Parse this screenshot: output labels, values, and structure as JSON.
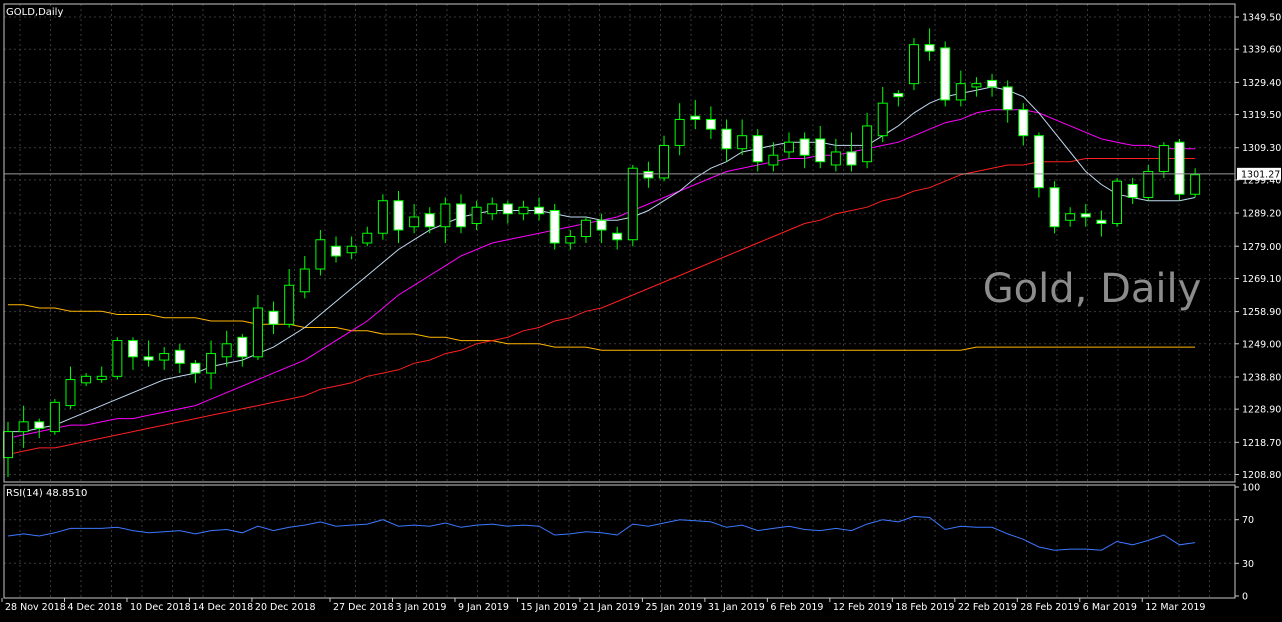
{
  "window": {
    "symbol_label": "GOLD,Daily",
    "watermark": "Gold, Daily",
    "current_price_label": "1301.27"
  },
  "colors": {
    "background": "#000000",
    "grid": "#3a3a3a",
    "frame": "#c8c8c8",
    "text": "#ffffff",
    "bull_body": "#000000",
    "bull_border": "#00ff00",
    "bear_body": "#ffffff",
    "bear_border": "#00ff00",
    "ma_fast": "#c0d8f0",
    "ma_mid": "#ff00ff",
    "ma_slow": "#ff2020",
    "ma_long": "#ffb400",
    "rsi_line": "#3c78ff",
    "watermark": "#8c8c8c"
  },
  "chart_data": [
    {
      "type": "candlestick",
      "title": "GOLD,Daily",
      "y_ticks": [
        "1349.50",
        "1339.60",
        "1329.40",
        "1319.50",
        "1309.30",
        "1299.40",
        "1289.20",
        "1279.00",
        "1269.10",
        "1258.90",
        "1249.00",
        "1238.80",
        "1228.90",
        "1218.70",
        "1208.80"
      ],
      "ylim": [
        1206.5,
        1353.5
      ],
      "x_labels": [
        "28 Nov 2018",
        "4 Dec 2018",
        "10 Dec 2018",
        "14 Dec 2018",
        "20 Dec 2018",
        "27 Dec 2018",
        "3 Jan 2019",
        "9 Jan 2019",
        "15 Jan 2019",
        "21 Jan 2019",
        "25 Jan 2019",
        "31 Jan 2019",
        "6 Feb 2019",
        "12 Feb 2019",
        "18 Feb 2019",
        "22 Feb 2019",
        "28 Feb 2019",
        "6 Mar 2019",
        "12 Mar 2019"
      ],
      "x_label_index": [
        0,
        4,
        8,
        12,
        16,
        21,
        25,
        29,
        33,
        37,
        41,
        45,
        49,
        53,
        57,
        61,
        65,
        69,
        73
      ],
      "current_price": 1301.27,
      "candles": [
        [
          1214,
          1222,
          1208,
          1225
        ],
        [
          1222,
          1225,
          1217,
          1230
        ],
        [
          1225,
          1223,
          1220,
          1226
        ],
        [
          1222,
          1231,
          1221,
          1232
        ],
        [
          1230,
          1238,
          1229,
          1242
        ],
        [
          1237,
          1239,
          1236,
          1240
        ],
        [
          1238,
          1239,
          1237,
          1242
        ],
        [
          1239,
          1250,
          1238,
          1251
        ],
        [
          1250,
          1245,
          1241,
          1251
        ],
        [
          1245,
          1244,
          1242,
          1250
        ],
        [
          1244,
          1246,
          1241,
          1248
        ],
        [
          1247,
          1243,
          1240,
          1249
        ],
        [
          1243,
          1240,
          1237,
          1244
        ],
        [
          1240,
          1246,
          1235,
          1250
        ],
        [
          1245,
          1249,
          1242,
          1253
        ],
        [
          1251,
          1245,
          1242,
          1252
        ],
        [
          1245,
          1260,
          1244,
          1264
        ],
        [
          1259,
          1255,
          1252,
          1262
        ],
        [
          1255,
          1267,
          1254,
          1272
        ],
        [
          1265,
          1272,
          1263,
          1276
        ],
        [
          1272,
          1281,
          1270,
          1284
        ],
        [
          1279,
          1276,
          1274,
          1282
        ],
        [
          1277,
          1279,
          1275,
          1282
        ],
        [
          1280,
          1283,
          1279,
          1285
        ],
        [
          1283,
          1293,
          1281,
          1295
        ],
        [
          1293,
          1284,
          1280,
          1296
        ],
        [
          1285,
          1288,
          1283,
          1292
        ],
        [
          1289,
          1285,
          1283,
          1291
        ],
        [
          1285,
          1292,
          1280,
          1294
        ],
        [
          1292,
          1285,
          1283,
          1295
        ],
        [
          1286,
          1291,
          1284,
          1293
        ],
        [
          1289,
          1292,
          1287,
          1294
        ],
        [
          1292,
          1289,
          1286,
          1293
        ],
        [
          1289,
          1291,
          1287,
          1293
        ],
        [
          1291,
          1289,
          1287,
          1294
        ],
        [
          1290,
          1280,
          1278,
          1292
        ],
        [
          1280,
          1282,
          1278,
          1284
        ],
        [
          1282,
          1287,
          1280,
          1288
        ],
        [
          1287,
          1284,
          1280,
          1289
        ],
        [
          1283,
          1281,
          1278,
          1285
        ],
        [
          1281,
          1303,
          1279,
          1304
        ],
        [
          1302,
          1300,
          1297,
          1305
        ],
        [
          1300,
          1310,
          1299,
          1313
        ],
        [
          1310,
          1318,
          1307,
          1323
        ],
        [
          1319,
          1318,
          1315,
          1324
        ],
        [
          1318,
          1315,
          1312,
          1322
        ],
        [
          1315,
          1309,
          1305,
          1318
        ],
        [
          1309,
          1313,
          1307,
          1318
        ],
        [
          1313,
          1305,
          1302,
          1315
        ],
        [
          1304,
          1307,
          1302,
          1311
        ],
        [
          1308,
          1311,
          1306,
          1314
        ],
        [
          1312,
          1307,
          1303,
          1314
        ],
        [
          1312,
          1305,
          1303,
          1316
        ],
        [
          1304,
          1308,
          1302,
          1312
        ],
        [
          1308,
          1304,
          1302,
          1314
        ],
        [
          1305,
          1316,
          1303,
          1320
        ],
        [
          1313,
          1323,
          1311,
          1328
        ],
        [
          1326,
          1325,
          1322,
          1327
        ],
        [
          1329,
          1341,
          1327,
          1343
        ],
        [
          1341,
          1339,
          1336,
          1346
        ],
        [
          1340,
          1324,
          1322,
          1342
        ],
        [
          1324,
          1329,
          1322,
          1333
        ],
        [
          1328,
          1329,
          1325,
          1331
        ],
        [
          1330,
          1328,
          1325,
          1332
        ],
        [
          1328,
          1321,
          1317,
          1330
        ],
        [
          1321,
          1313,
          1310,
          1323
        ],
        [
          1313,
          1297,
          1294,
          1314
        ],
        [
          1297,
          1285,
          1283,
          1299
        ],
        [
          1287,
          1289,
          1285,
          1291
        ],
        [
          1289,
          1288,
          1285,
          1292
        ],
        [
          1287,
          1286,
          1282,
          1290
        ],
        [
          1286,
          1299,
          1285,
          1300
        ],
        [
          1298,
          1294,
          1292,
          1300
        ],
        [
          1294,
          1302,
          1293,
          1304
        ],
        [
          1302,
          1310,
          1300,
          1311
        ],
        [
          1311,
          1295,
          1293,
          1312
        ],
        [
          1295,
          1301,
          1294,
          1303
        ]
      ],
      "ma_fast": [
        1222,
        1222,
        1223,
        1224,
        1226,
        1228,
        1230,
        1232,
        1234,
        1236,
        1238,
        1239,
        1240,
        1242,
        1243,
        1244,
        1246,
        1248,
        1251,
        1254,
        1258,
        1262,
        1266,
        1270,
        1274,
        1278,
        1281,
        1284,
        1286,
        1288,
        1289,
        1290,
        1290,
        1290,
        1290,
        1289,
        1288,
        1288,
        1287,
        1287,
        1288,
        1290,
        1293,
        1296,
        1300,
        1303,
        1305,
        1308,
        1309,
        1310,
        1311,
        1311,
        1311,
        1310,
        1310,
        1310,
        1313,
        1316,
        1320,
        1323,
        1325,
        1326,
        1327,
        1328,
        1327,
        1325,
        1320,
        1314,
        1308,
        1302,
        1298,
        1295,
        1294,
        1293,
        1293,
        1293,
        1294
      ],
      "ma_mid": [
        1220,
        1221,
        1222,
        1223,
        1224,
        1224,
        1225,
        1226,
        1226,
        1227,
        1228,
        1229,
        1230,
        1232,
        1234,
        1236,
        1238,
        1240,
        1242,
        1244,
        1247,
        1250,
        1253,
        1256,
        1260,
        1264,
        1267,
        1270,
        1273,
        1276,
        1278,
        1280,
        1281,
        1282,
        1283,
        1284,
        1285,
        1286,
        1287,
        1288,
        1290,
        1292,
        1294,
        1296,
        1298,
        1300,
        1302,
        1303,
        1304,
        1305,
        1306,
        1306,
        1307,
        1307,
        1308,
        1309,
        1310,
        1311,
        1313,
        1315,
        1317,
        1318,
        1320,
        1321,
        1321,
        1321,
        1320,
        1318,
        1316,
        1314,
        1312,
        1311,
        1310,
        1310,
        1309,
        1309,
        1309
      ],
      "ma_slow": [
        1215,
        1216,
        1217,
        1217,
        1218,
        1219,
        1220,
        1221,
        1222,
        1223,
        1224,
        1225,
        1226,
        1227,
        1228,
        1229,
        1230,
        1231,
        1232,
        1233,
        1235,
        1236,
        1237,
        1239,
        1240,
        1241,
        1243,
        1244,
        1246,
        1247,
        1249,
        1250,
        1251,
        1253,
        1254,
        1256,
        1257,
        1259,
        1260,
        1262,
        1264,
        1266,
        1268,
        1270,
        1272,
        1274,
        1276,
        1278,
        1280,
        1282,
        1284,
        1286,
        1287,
        1289,
        1290,
        1291,
        1293,
        1294,
        1296,
        1297,
        1299,
        1301,
        1302,
        1303,
        1304,
        1304,
        1305,
        1305,
        1305,
        1306,
        1306,
        1306,
        1306,
        1306,
        1306,
        1306,
        1306
      ],
      "ma_long": [
        1261,
        1261,
        1260,
        1260,
        1259,
        1259,
        1259,
        1258,
        1258,
        1258,
        1257,
        1257,
        1257,
        1256,
        1256,
        1256,
        1255,
        1255,
        1255,
        1254,
        1254,
        1254,
        1253,
        1253,
        1252,
        1252,
        1252,
        1251,
        1251,
        1250,
        1250,
        1250,
        1249,
        1249,
        1249,
        1248,
        1248,
        1248,
        1247,
        1247,
        1247,
        1247,
        1247,
        1247,
        1247,
        1247,
        1247,
        1247,
        1247,
        1247,
        1247,
        1247,
        1247,
        1247,
        1247,
        1247,
        1247,
        1247,
        1247,
        1247,
        1247,
        1247,
        1248,
        1248,
        1248,
        1248,
        1248,
        1248,
        1248,
        1248,
        1248,
        1248,
        1248,
        1248,
        1248,
        1248,
        1248
      ]
    },
    {
      "type": "line",
      "title": "RSI(14) 48.8510",
      "y_ticks": [
        "100",
        "70",
        "30",
        "0"
      ],
      "ylim": [
        0,
        100
      ],
      "series": [
        {
          "name": "RSI(14)",
          "values": [
            55,
            57,
            55,
            58,
            62,
            62,
            62,
            63,
            60,
            58,
            59,
            60,
            57,
            60,
            61,
            58,
            64,
            60,
            63,
            65,
            68,
            64,
            65,
            66,
            70,
            64,
            65,
            64,
            67,
            63,
            65,
            66,
            64,
            65,
            64,
            56,
            57,
            59,
            58,
            56,
            66,
            64,
            67,
            70,
            69,
            68,
            63,
            65,
            60,
            62,
            64,
            61,
            60,
            62,
            60,
            66,
            70,
            68,
            73,
            72,
            61,
            64,
            63,
            63,
            57,
            52,
            45,
            42,
            43,
            43,
            42,
            50,
            47,
            51,
            56,
            47,
            49
          ]
        }
      ]
    }
  ]
}
